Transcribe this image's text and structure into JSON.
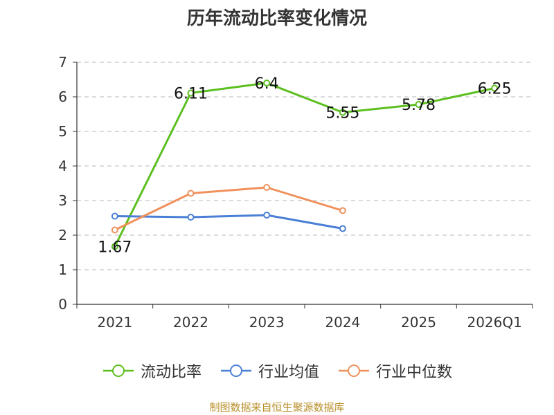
{
  "title": "历年流动比率变化情况",
  "source": "制图数据来自恒生聚源数据库",
  "chart_data": {
    "type": "line",
    "title": "历年流动比率变化情况",
    "categories": [
      "2021",
      "2022",
      "2023",
      "2024",
      "2025",
      "2026Q1"
    ],
    "ylim": [
      0,
      7
    ],
    "yticks": [
      0,
      1,
      2,
      3,
      4,
      5,
      6,
      7
    ],
    "grid": true,
    "legend_position": "bottom",
    "series": [
      {
        "name": "流动比率",
        "color": "#5cbf1f",
        "values": [
          1.67,
          6.11,
          6.4,
          5.55,
          5.78,
          6.25
        ],
        "labels": [
          "1.67",
          "6.11",
          "6.4",
          "5.55",
          "5.78",
          "6.25"
        ],
        "show_labels": true
      },
      {
        "name": "行业均值",
        "color": "#4a7fd6",
        "values": [
          2.55,
          2.52,
          2.58,
          2.19,
          null,
          null
        ],
        "show_labels": false
      },
      {
        "name": "行业中位数",
        "color": "#f0915c",
        "values": [
          2.15,
          3.21,
          3.38,
          2.71,
          null,
          null
        ],
        "show_labels": false
      }
    ]
  }
}
